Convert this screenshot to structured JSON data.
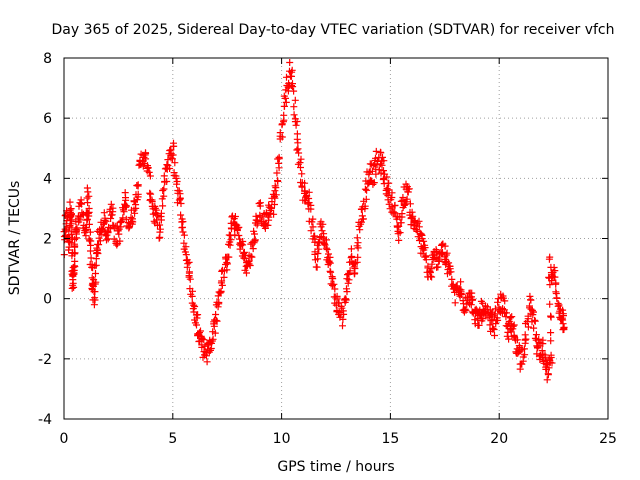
{
  "chart_data": {
    "type": "scatter",
    "title": "Day 365 of 2025, Sidereal Day-to-day VTEC variation (SDTVAR) for receiver vfch",
    "xlabel": "GPS time / hours",
    "ylabel": "SDTVAR / TECUs",
    "xlim": [
      0,
      25
    ],
    "ylim": [
      -4,
      8
    ],
    "xticks": [
      0,
      5,
      10,
      15,
      20,
      25
    ],
    "yticks": [
      -4,
      -2,
      0,
      2,
      4,
      6,
      8
    ],
    "grid": true,
    "marker": "plus",
    "color": "#ff0000",
    "series": [
      {
        "name": "SDTVAR",
        "trace_description_points": [
          [
            0.0,
            1.6
          ],
          [
            0.1,
            2.8
          ],
          [
            0.2,
            1.7
          ],
          [
            0.3,
            3.2
          ],
          [
            0.35,
            2.3
          ],
          [
            0.4,
            0.5
          ],
          [
            0.45,
            0.6
          ],
          [
            0.5,
            1.8
          ],
          [
            0.6,
            2.5
          ],
          [
            0.8,
            3.0
          ],
          [
            1.0,
            2.2
          ],
          [
            1.1,
            3.4
          ],
          [
            1.2,
            1.7
          ],
          [
            1.3,
            0.7
          ],
          [
            1.4,
            0.0
          ],
          [
            1.5,
            1.5
          ],
          [
            1.6,
            2.0
          ],
          [
            1.8,
            2.6
          ],
          [
            2.0,
            2.2
          ],
          [
            2.2,
            3.0
          ],
          [
            2.4,
            2.0
          ],
          [
            2.6,
            2.3
          ],
          [
            2.8,
            3.3
          ],
          [
            3.0,
            2.4
          ],
          [
            3.2,
            3.0
          ],
          [
            3.4,
            3.8
          ],
          [
            3.6,
            4.8
          ],
          [
            3.8,
            4.5
          ],
          [
            4.0,
            3.4
          ],
          [
            4.2,
            2.7
          ],
          [
            4.4,
            2.2
          ],
          [
            4.6,
            3.8
          ],
          [
            4.8,
            4.6
          ],
          [
            5.0,
            5.0
          ],
          [
            5.2,
            3.7
          ],
          [
            5.4,
            2.8
          ],
          [
            5.6,
            1.6
          ],
          [
            5.8,
            0.6
          ],
          [
            6.0,
            -0.5
          ],
          [
            6.2,
            -1.0
          ],
          [
            6.4,
            -1.6
          ],
          [
            6.6,
            -1.8
          ],
          [
            6.8,
            -1.3
          ],
          [
            7.0,
            -0.6
          ],
          [
            7.2,
            0.4
          ],
          [
            7.4,
            1.0
          ],
          [
            7.6,
            1.9
          ],
          [
            7.8,
            2.6
          ],
          [
            8.0,
            2.2
          ],
          [
            8.2,
            1.6
          ],
          [
            8.4,
            1.0
          ],
          [
            8.6,
            1.5
          ],
          [
            8.8,
            2.2
          ],
          [
            9.0,
            3.0
          ],
          [
            9.2,
            2.4
          ],
          [
            9.4,
            2.9
          ],
          [
            9.6,
            3.1
          ],
          [
            9.8,
            4.0
          ],
          [
            10.0,
            5.6
          ],
          [
            10.2,
            6.8
          ],
          [
            10.4,
            7.7
          ],
          [
            10.6,
            6.3
          ],
          [
            10.8,
            4.8
          ],
          [
            11.0,
            3.6
          ],
          [
            11.2,
            3.4
          ],
          [
            11.4,
            2.4
          ],
          [
            11.6,
            1.2
          ],
          [
            11.8,
            2.4
          ],
          [
            12.0,
            2.0
          ],
          [
            12.2,
            1.1
          ],
          [
            12.4,
            0.2
          ],
          [
            12.6,
            -0.3
          ],
          [
            12.8,
            -0.6
          ],
          [
            13.0,
            0.3
          ],
          [
            13.2,
            1.4
          ],
          [
            13.4,
            1.0
          ],
          [
            13.6,
            2.6
          ],
          [
            13.8,
            3.0
          ],
          [
            14.0,
            4.3
          ],
          [
            14.2,
            4.1
          ],
          [
            14.4,
            4.6
          ],
          [
            14.6,
            4.5
          ],
          [
            14.8,
            3.8
          ],
          [
            15.0,
            3.4
          ],
          [
            15.2,
            2.8
          ],
          [
            15.4,
            2.2
          ],
          [
            15.6,
            3.4
          ],
          [
            15.8,
            3.6
          ],
          [
            16.0,
            2.6
          ],
          [
            16.2,
            2.5
          ],
          [
            16.4,
            1.9
          ],
          [
            16.6,
            1.4
          ],
          [
            16.8,
            0.7
          ],
          [
            17.0,
            1.3
          ],
          [
            17.2,
            1.4
          ],
          [
            17.4,
            1.7
          ],
          [
            17.6,
            1.2
          ],
          [
            17.8,
            0.7
          ],
          [
            18.0,
            0.1
          ],
          [
            18.2,
            0.3
          ],
          [
            18.4,
            -0.2
          ],
          [
            18.6,
            0.2
          ],
          [
            18.8,
            -0.3
          ],
          [
            19.0,
            -0.8
          ],
          [
            19.2,
            -0.4
          ],
          [
            19.4,
            -0.6
          ],
          [
            19.6,
            -0.7
          ],
          [
            19.8,
            -0.9
          ],
          [
            20.0,
            -0.1
          ],
          [
            20.2,
            -0.3
          ],
          [
            20.4,
            -1.1
          ],
          [
            20.6,
            -0.9
          ],
          [
            20.8,
            -1.5
          ],
          [
            21.0,
            -2.0
          ],
          [
            21.2,
            -1.4
          ],
          [
            21.4,
            -0.2
          ],
          [
            21.6,
            -0.7
          ],
          [
            21.8,
            -1.8
          ],
          [
            22.0,
            -1.7
          ],
          [
            22.2,
            -2.6
          ],
          [
            22.4,
            -2.1
          ],
          [
            22.3,
            1.1
          ],
          [
            22.5,
            0.8
          ],
          [
            22.7,
            -0.3
          ],
          [
            22.9,
            -0.5
          ],
          [
            23.0,
            -0.9
          ]
        ]
      }
    ]
  }
}
